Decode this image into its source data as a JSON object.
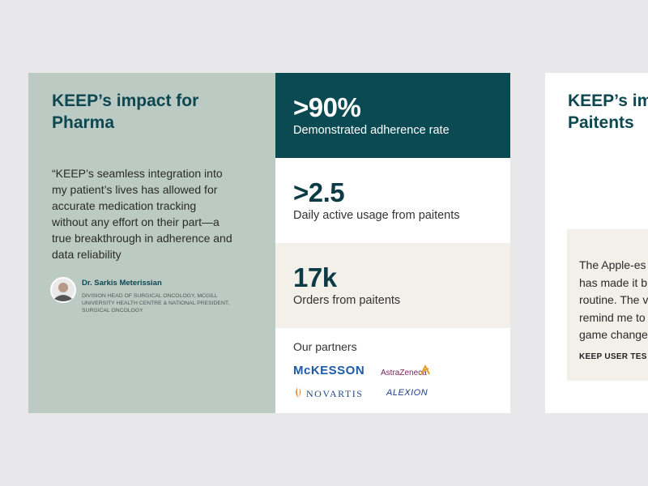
{
  "card": {
    "title_lines": [
      "KEEP’s impact for",
      "Pharma"
    ],
    "quote_lines": [
      "“KEEP’s seamless integration into",
      "my patient’s lives has allowed for",
      "accurate medication tracking",
      "without any effort on their part—a",
      "true breakthrough in adherence and",
      "data reliability"
    ],
    "author": "Dr. Sarkis Meterissian",
    "role_lines": [
      "DIVISION HEAD OF SURGICAL ONCOLOGY, MCGILL",
      "UNIVERSITY HEALTH CENTRE & NATIONAL PRESIDENT,",
      "SURGICAL ONCOLOGY"
    ],
    "stats": [
      {
        "value": ">90%",
        "label": "Demonstrated adherence rate"
      },
      {
        "value": ">2.5",
        "label": "Daily active usage from paitents"
      },
      {
        "value": "17k",
        "label": "Orders from paitents"
      }
    ],
    "partners_title": "Our partners",
    "partners": [
      "McKESSON",
      "AstraZeneca",
      "NOVARTIS",
      "ALEXION"
    ]
  },
  "next_card": {
    "title_lines": [
      "KEEP’s im",
      "Paitents"
    ],
    "quote_lines": [
      "The Apple-es",
      "has made it b",
      "routine. The v",
      "remind me to",
      "game change"
    ],
    "source": "KEEP USER TES"
  }
}
